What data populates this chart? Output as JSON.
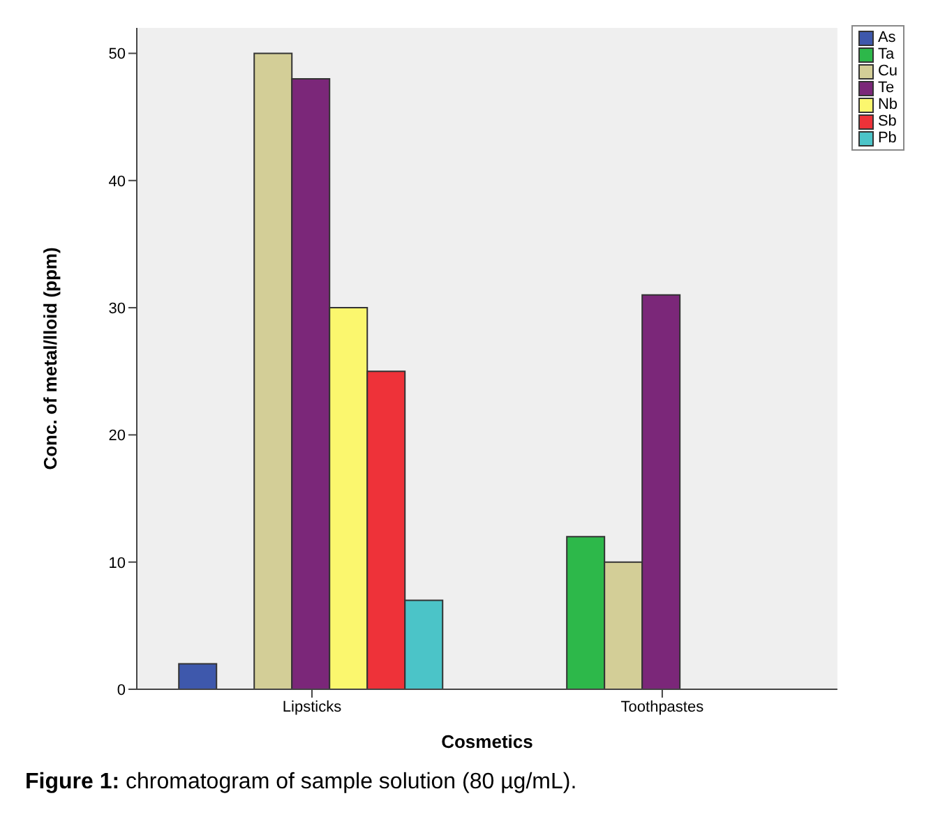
{
  "chart_data": {
    "type": "bar",
    "xlabel": "Cosmetics",
    "ylabel": "Conc. of metal/lloid (ppm)",
    "categories": [
      "Lipsticks",
      "Toothpastes"
    ],
    "series": [
      {
        "name": "As",
        "color": "#3e58ac",
        "values": [
          2,
          null
        ]
      },
      {
        "name": "Ta",
        "color": "#2db84a",
        "values": [
          null,
          12
        ]
      },
      {
        "name": "Cu",
        "color": "#d3ce97",
        "values": [
          50,
          10
        ]
      },
      {
        "name": "Te",
        "color": "#7b2779",
        "values": [
          48,
          31
        ]
      },
      {
        "name": "Nb",
        "color": "#fbf76e",
        "values": [
          30,
          null
        ]
      },
      {
        "name": "Sb",
        "color": "#ee3239",
        "values": [
          25,
          null
        ]
      },
      {
        "name": "Pb",
        "color": "#4bc4c8",
        "values": [
          7,
          null
        ]
      }
    ],
    "ylim": [
      0,
      52
    ],
    "yticks": [
      0,
      10,
      20,
      30,
      40,
      50
    ],
    "grid": false,
    "legend": "top right",
    "annotations": [
      "Figure 1: chromatogram of sample solution (80 µg/mL)."
    ]
  }
}
